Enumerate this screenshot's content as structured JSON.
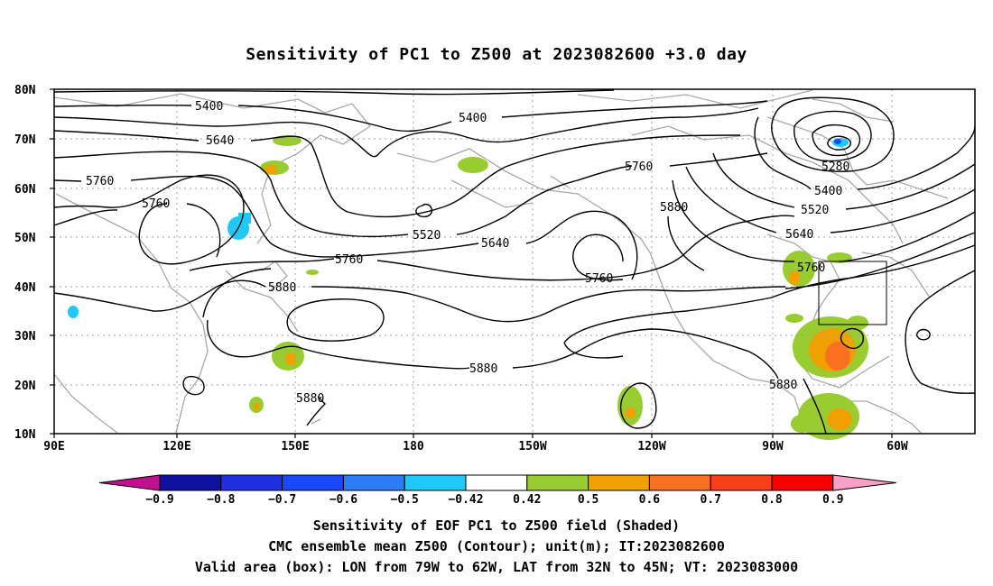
{
  "title": "Sensitivity of PC1 to Z500 at 2023082600 +3.0 day",
  "axes": {
    "lat_labels": [
      "80N",
      "70N",
      "60N",
      "50N",
      "40N",
      "30N",
      "20N",
      "10N"
    ],
    "lon_labels": [
      "90E",
      "120E",
      "150E",
      "180",
      "150W",
      "120W",
      "90W",
      "60W"
    ]
  },
  "contour_labels": [
    {
      "text": "5400",
      "key": "c1"
    },
    {
      "text": "5400",
      "key": "c2"
    },
    {
      "text": "5640",
      "key": "c3"
    },
    {
      "text": "5760",
      "key": "c4"
    },
    {
      "text": "5760",
      "key": "c5"
    },
    {
      "text": "5520",
      "key": "c6"
    },
    {
      "text": "5640",
      "key": "c7"
    },
    {
      "text": "5760",
      "key": "c8"
    },
    {
      "text": "5880",
      "key": "c9"
    },
    {
      "text": "5760",
      "key": "c10"
    },
    {
      "text": "5760",
      "key": "c11"
    },
    {
      "text": "5880",
      "key": "c12"
    },
    {
      "text": "5280",
      "key": "c13"
    },
    {
      "text": "5400",
      "key": "c14"
    },
    {
      "text": "5520",
      "key": "c15"
    },
    {
      "text": "5640",
      "key": "c16"
    },
    {
      "text": "5760",
      "key": "c17"
    },
    {
      "text": "5880",
      "key": "c18"
    },
    {
      "text": "5880",
      "key": "c19"
    },
    {
      "text": "5880",
      "key": "c20"
    }
  ],
  "colorbar": {
    "labels": [
      "−0.9",
      "−0.8",
      "−0.7",
      "−0.6",
      "−0.5",
      "−0.42",
      "0.42",
      "0.5",
      "0.6",
      "0.7",
      "0.8",
      "0.9"
    ],
    "colors": [
      "#1010a0",
      "#2030e0",
      "#1848f8",
      "#2c7cf8",
      "#20c8f8",
      "#ffffff",
      "#98cc30",
      "#f0a000",
      "#f87020",
      "#f84018",
      "#f80000"
    ],
    "low_end_color": "#c01090",
    "high_end_color": "#f8a0c8"
  },
  "captions": {
    "line1": "Sensitivity of EOF PC1 to Z500 field (Shaded)",
    "line2": "CMC ensemble mean Z500 (Contour); unit(m); IT:2023082600",
    "line3": "Valid area (box): LON from 79W to 62W, LAT from 32N to 45N; VT: 2023083000"
  },
  "colors": {
    "contour": "#000000",
    "coastline": "#a8a8a8",
    "grid": "#a0a0a0",
    "positive_low": "#98cc30",
    "positive_mid": "#f0a000",
    "positive_high": "#f87020",
    "negative": "#20c8f8"
  }
}
